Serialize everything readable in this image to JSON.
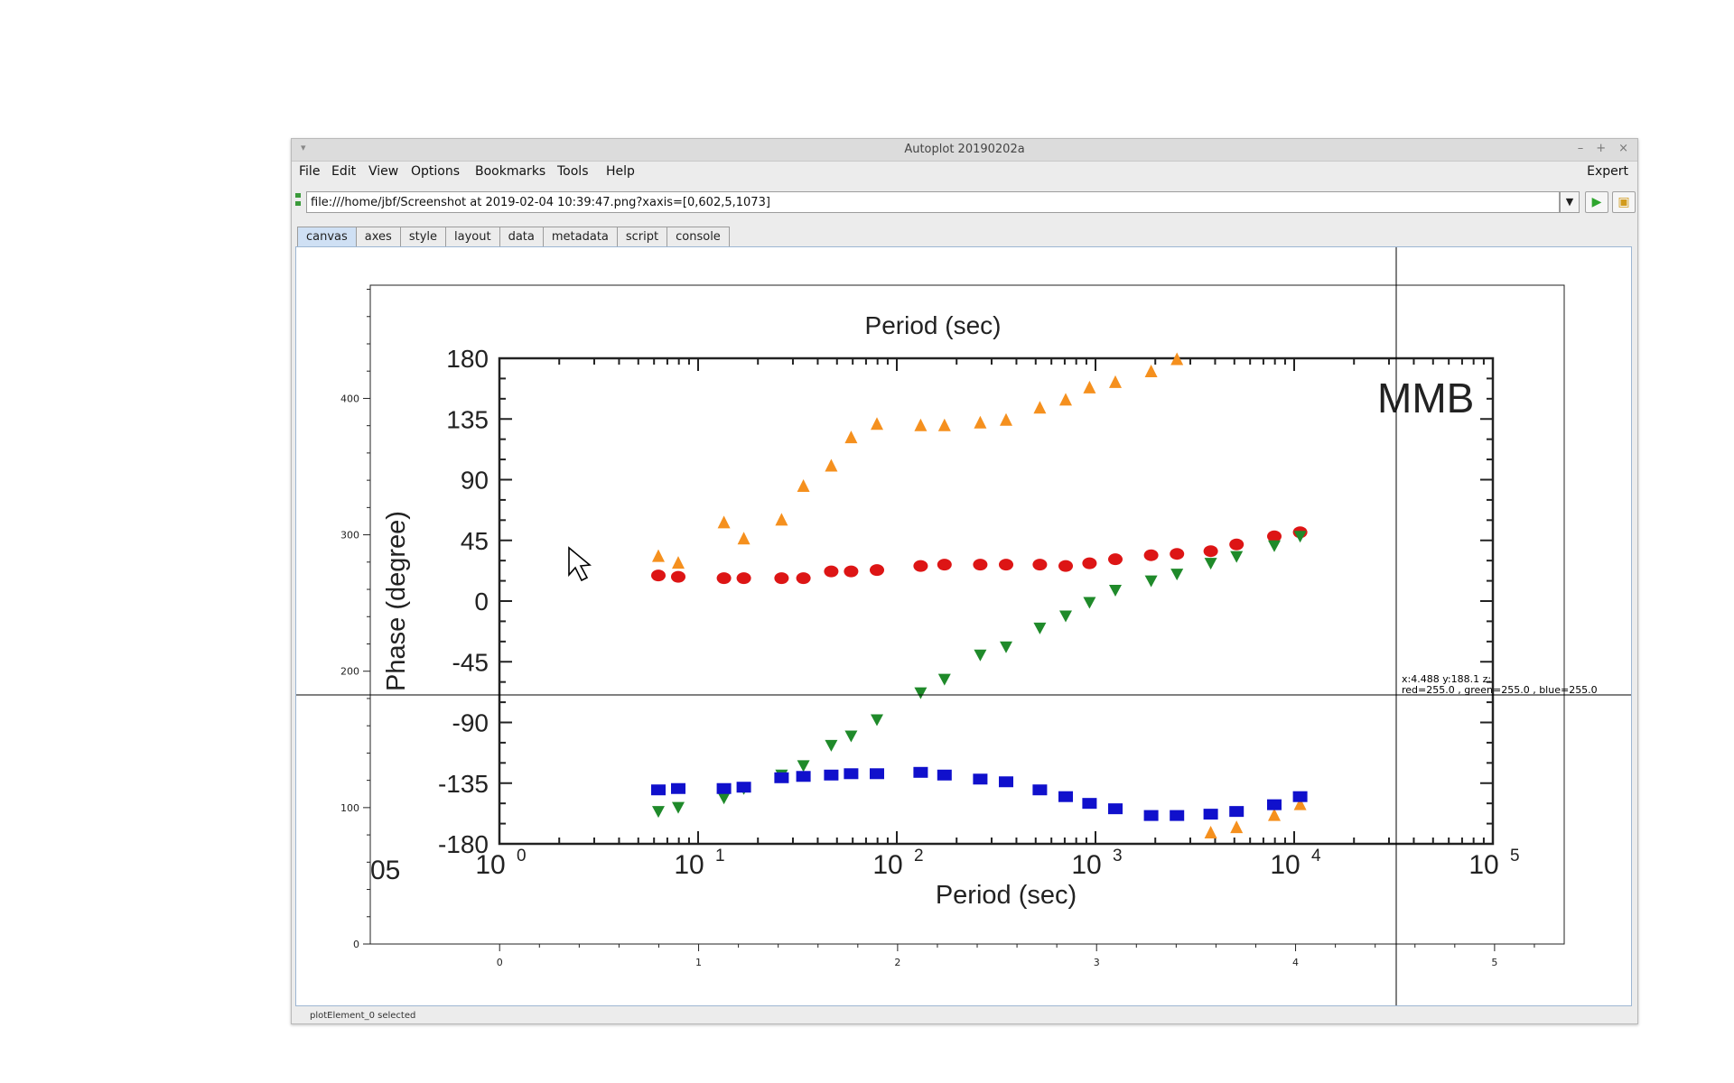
{
  "window": {
    "title": "Autoplot 20190202a"
  },
  "menubar": {
    "items": [
      "File",
      "Edit",
      "View",
      "Options",
      "Bookmarks",
      "Tools",
      "Help"
    ],
    "expert": "Expert"
  },
  "url": {
    "value": "file:///home/jbf/Screenshot at 2019-02-04 10:39:47.png?xaxis=[0,602,5,1073]"
  },
  "tabs": [
    "canvas",
    "axes",
    "style",
    "layout",
    "data",
    "metadata",
    "script",
    "console"
  ],
  "active_tab": "canvas",
  "status": {
    "text": "plotElement_0 selected"
  },
  "readout": {
    "line1": "x:4.488  y:188.1  z:",
    "line2": "red=255.0 , green=255.0 , blue=255.0"
  },
  "image": {
    "top_label": "Period (sec)",
    "mmb": "MMB",
    "ylabel": "Phase (degree)",
    "xlabel": "Period (sec)",
    "left_edge_label": "05",
    "yticks": [
      "180",
      "135",
      "90",
      "45",
      "0",
      "-45",
      "-90",
      "-135",
      "-180"
    ],
    "xticks": [
      "10",
      "10",
      "10",
      "10",
      "10",
      "10"
    ],
    "xtick_exps": [
      "0",
      "1",
      "2",
      "3",
      "4",
      "5"
    ],
    "colors": {
      "orange": "#f5901e",
      "red": "#dd1515",
      "green": "#1f8a2a",
      "blue": "#1010cc"
    },
    "series": {
      "orange": [
        [
          0.8,
          33
        ],
        [
          0.9,
          28
        ],
        [
          1.13,
          58
        ],
        [
          1.23,
          46
        ],
        [
          1.42,
          60
        ],
        [
          1.53,
          85
        ],
        [
          1.67,
          100
        ],
        [
          1.77,
          121
        ],
        [
          1.9,
          131
        ],
        [
          2.12,
          130
        ],
        [
          2.24,
          130
        ],
        [
          2.42,
          132
        ],
        [
          2.55,
          134
        ],
        [
          2.72,
          143
        ],
        [
          2.85,
          149
        ],
        [
          2.97,
          158
        ],
        [
          3.1,
          162
        ],
        [
          3.28,
          170
        ],
        [
          3.41,
          179
        ],
        [
          3.58,
          -172
        ],
        [
          3.71,
          -168
        ],
        [
          3.9,
          -159
        ],
        [
          4.03,
          -151
        ]
      ],
      "red": [
        [
          0.8,
          19
        ],
        [
          0.9,
          18
        ],
        [
          1.13,
          17
        ],
        [
          1.23,
          17
        ],
        [
          1.42,
          17
        ],
        [
          1.53,
          17
        ],
        [
          1.67,
          22
        ],
        [
          1.77,
          22
        ],
        [
          1.9,
          23
        ],
        [
          2.12,
          26
        ],
        [
          2.24,
          27
        ],
        [
          2.42,
          27
        ],
        [
          2.55,
          27
        ],
        [
          2.72,
          27
        ],
        [
          2.85,
          26
        ],
        [
          2.97,
          28
        ],
        [
          3.1,
          31
        ],
        [
          3.28,
          34
        ],
        [
          3.41,
          35
        ],
        [
          3.58,
          37
        ],
        [
          3.71,
          42
        ],
        [
          3.9,
          48
        ],
        [
          4.03,
          51
        ]
      ],
      "green": [
        [
          0.8,
          -156
        ],
        [
          0.9,
          -153
        ],
        [
          1.13,
          -146
        ],
        [
          1.23,
          -139
        ],
        [
          1.42,
          -129
        ],
        [
          1.53,
          -122
        ],
        [
          1.67,
          -107
        ],
        [
          1.77,
          -100
        ],
        [
          1.9,
          -88
        ],
        [
          2.12,
          -68
        ],
        [
          2.24,
          -58
        ],
        [
          2.42,
          -40
        ],
        [
          2.55,
          -34
        ],
        [
          2.72,
          -20
        ],
        [
          2.85,
          -11
        ],
        [
          2.97,
          -1
        ],
        [
          3.1,
          8
        ],
        [
          3.28,
          15
        ],
        [
          3.41,
          20
        ],
        [
          3.58,
          28
        ],
        [
          3.71,
          33
        ],
        [
          3.9,
          41
        ],
        [
          4.03,
          48
        ]
      ],
      "blue": [
        [
          0.8,
          -140
        ],
        [
          0.9,
          -139
        ],
        [
          1.13,
          -139
        ],
        [
          1.23,
          -138
        ],
        [
          1.42,
          -131
        ],
        [
          1.53,
          -130
        ],
        [
          1.67,
          -129
        ],
        [
          1.77,
          -128
        ],
        [
          1.9,
          -128
        ],
        [
          2.12,
          -127
        ],
        [
          2.24,
          -129
        ],
        [
          2.42,
          -132
        ],
        [
          2.55,
          -134
        ],
        [
          2.72,
          -140
        ],
        [
          2.85,
          -145
        ],
        [
          2.97,
          -150
        ],
        [
          3.1,
          -154
        ],
        [
          3.28,
          -159
        ],
        [
          3.41,
          -159
        ],
        [
          3.58,
          -158
        ],
        [
          3.71,
          -156
        ],
        [
          3.9,
          -151
        ],
        [
          4.03,
          -145
        ]
      ]
    }
  },
  "chart_data": {
    "type": "scatter",
    "xaxis": {
      "ticks": [
        "0",
        "1",
        "2",
        "3",
        "4",
        "5"
      ],
      "range": [
        -0.65,
        5.35
      ]
    },
    "yaxis": {
      "ticks": [
        "0",
        "100",
        "200",
        "300",
        "400"
      ],
      "range": [
        0,
        483
      ]
    },
    "crosshair": {
      "x": 4.488,
      "y": 188.1
    }
  }
}
